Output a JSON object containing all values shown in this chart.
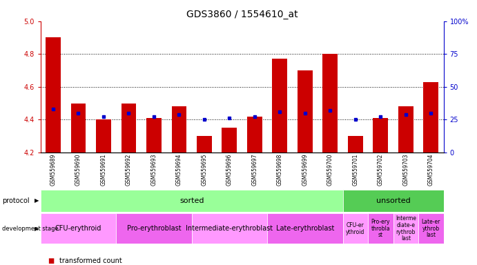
{
  "title": "GDS3860 / 1554610_at",
  "samples": [
    "GSM559689",
    "GSM559690",
    "GSM559691",
    "GSM559692",
    "GSM559693",
    "GSM559694",
    "GSM559695",
    "GSM559696",
    "GSM559697",
    "GSM559698",
    "GSM559699",
    "GSM559700",
    "GSM559701",
    "GSM559702",
    "GSM559703",
    "GSM559704"
  ],
  "transformed_count": [
    4.9,
    4.5,
    4.4,
    4.5,
    4.41,
    4.48,
    4.3,
    4.35,
    4.42,
    4.77,
    4.7,
    4.8,
    4.3,
    4.41,
    4.48,
    4.63
  ],
  "percentile_rank_pct": [
    33,
    30,
    27,
    30,
    27,
    29,
    25,
    26,
    27,
    31,
    30,
    32,
    25,
    27,
    29,
    30
  ],
  "ylim_left": [
    4.2,
    5.0
  ],
  "ylim_right": [
    0,
    100
  ],
  "yticks_left": [
    4.2,
    4.4,
    4.6,
    4.8,
    5.0
  ],
  "yticks_right": [
    0,
    25,
    50,
    75,
    100
  ],
  "ytick_labels_right": [
    "0",
    "25",
    "50",
    "75",
    "100%"
  ],
  "bar_color": "#cc0000",
  "dot_color": "#0000cc",
  "bar_bottom": 4.2,
  "protocol_color_sorted": "#99ff99",
  "protocol_color_unsorted": "#55cc55",
  "dev_stage_groups": [
    {
      "label": "CFU-erythroid",
      "range": [
        0,
        2
      ],
      "color": "#ff99ff"
    },
    {
      "label": "Pro-erythroblast",
      "range": [
        3,
        5
      ],
      "color": "#ee66ee"
    },
    {
      "label": "Intermediate-erythroblast",
      "range": [
        6,
        8
      ],
      "color": "#ff99ff"
    },
    {
      "label": "Late-erythroblast",
      "range": [
        9,
        11
      ],
      "color": "#ee66ee"
    },
    {
      "label": "CFU-er\nythroid",
      "range": [
        12,
        12
      ],
      "color": "#ff99ff"
    },
    {
      "label": "Pro-ery\nthrobla\nst",
      "range": [
        13,
        13
      ],
      "color": "#ee66ee"
    },
    {
      "label": "Interme\ndiate-e\nrythrob\nlast",
      "range": [
        14,
        14
      ],
      "color": "#ff99ff"
    },
    {
      "label": "Late-er\nythrob\nlast",
      "range": [
        15,
        15
      ],
      "color": "#ee66ee"
    }
  ],
  "tick_color_left": "#cc0000",
  "tick_color_right": "#0000cc",
  "title_fontsize": 10,
  "bar_color_legend": "#cc0000",
  "dot_color_legend": "#0000cc"
}
